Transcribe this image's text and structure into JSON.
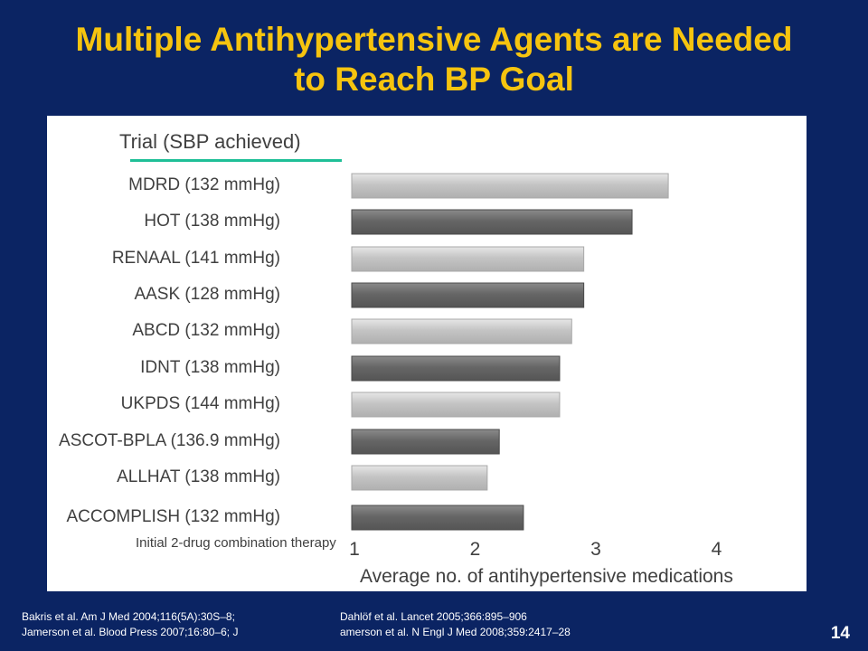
{
  "title_line1": "Multiple Antihypertensive Agents are Needed",
  "title_line2": "to Reach BP Goal",
  "chart_data": {
    "type": "bar",
    "orientation": "horizontal",
    "category_header": "Trial (SBP achieved)",
    "categories": [
      "MDRD (132 mmHg)",
      "HOT (138 mmHg)",
      "RENAAL (141 mmHg)",
      "AASK (128 mmHg)",
      "ABCD (132 mmHg)",
      "IDNT (138 mmHg)",
      "UKPDS (144 mmHg)",
      "ASCOT-BPLA (136.9 mmHg)",
      "ALLHAT (138 mmHg)",
      "ACCOMPLISH (132 mmHg)"
    ],
    "values": [
      3.6,
      3.3,
      2.9,
      2.9,
      2.8,
      2.7,
      2.7,
      2.2,
      2.1,
      2.4
    ],
    "bar_colors": [
      "#bdbdbd",
      "#5e5e5e",
      "#bdbdbd",
      "#5e5e5e",
      "#bdbdbd",
      "#5e5e5e",
      "#bdbdbd",
      "#5e5e5e",
      "#bdbdbd",
      "#5e5e5e"
    ],
    "xlabel": "Average no. of antihypertensive medications",
    "xticks": [
      "1",
      "2",
      "3",
      "4"
    ],
    "xlim": [
      1,
      4
    ],
    "annotation": "Initial 2-drug combination therapy",
    "grid": false
  },
  "references": {
    "left_line1": "Bakris et al. Am J Med 2004;116(5A):30S–8;",
    "left_line2": "Jamerson et al. Blood Press 2007;16:80–6; J",
    "right_line1": "Dahlöf et al. Lancet 2005;366:895–906",
    "right_line2": "amerson et al. N Engl J Med 2008;359:2417–28"
  },
  "page_number": "14"
}
